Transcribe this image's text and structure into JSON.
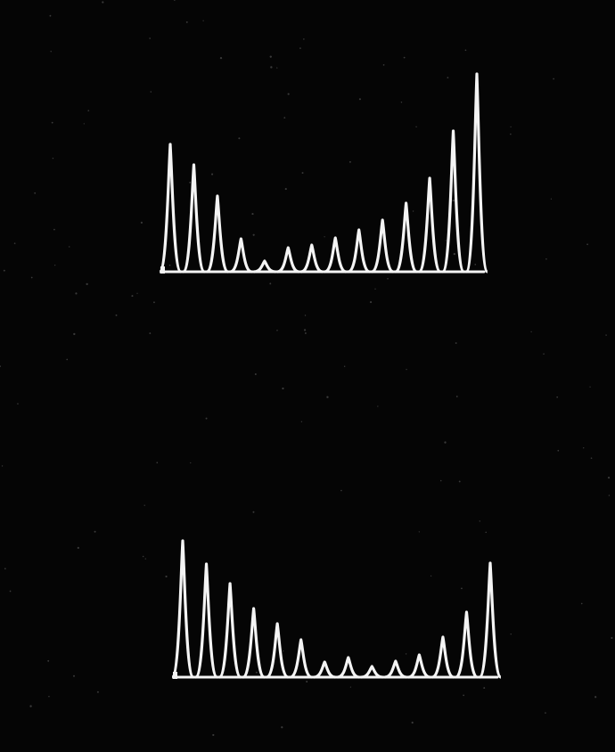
{
  "chart_data": [
    {
      "type": "spectrum",
      "color": "#f4f4f4",
      "values": [
        143,
        120,
        85,
        37,
        12,
        27,
        30,
        38,
        47,
        58,
        77,
        105,
        158,
        222
      ]
    },
    {
      "type": "spectrum",
      "color": "#f4f4f4",
      "values": [
        153,
        127,
        105,
        77,
        60,
        42,
        17,
        22,
        12,
        18,
        25,
        45,
        73,
        128
      ]
    }
  ]
}
